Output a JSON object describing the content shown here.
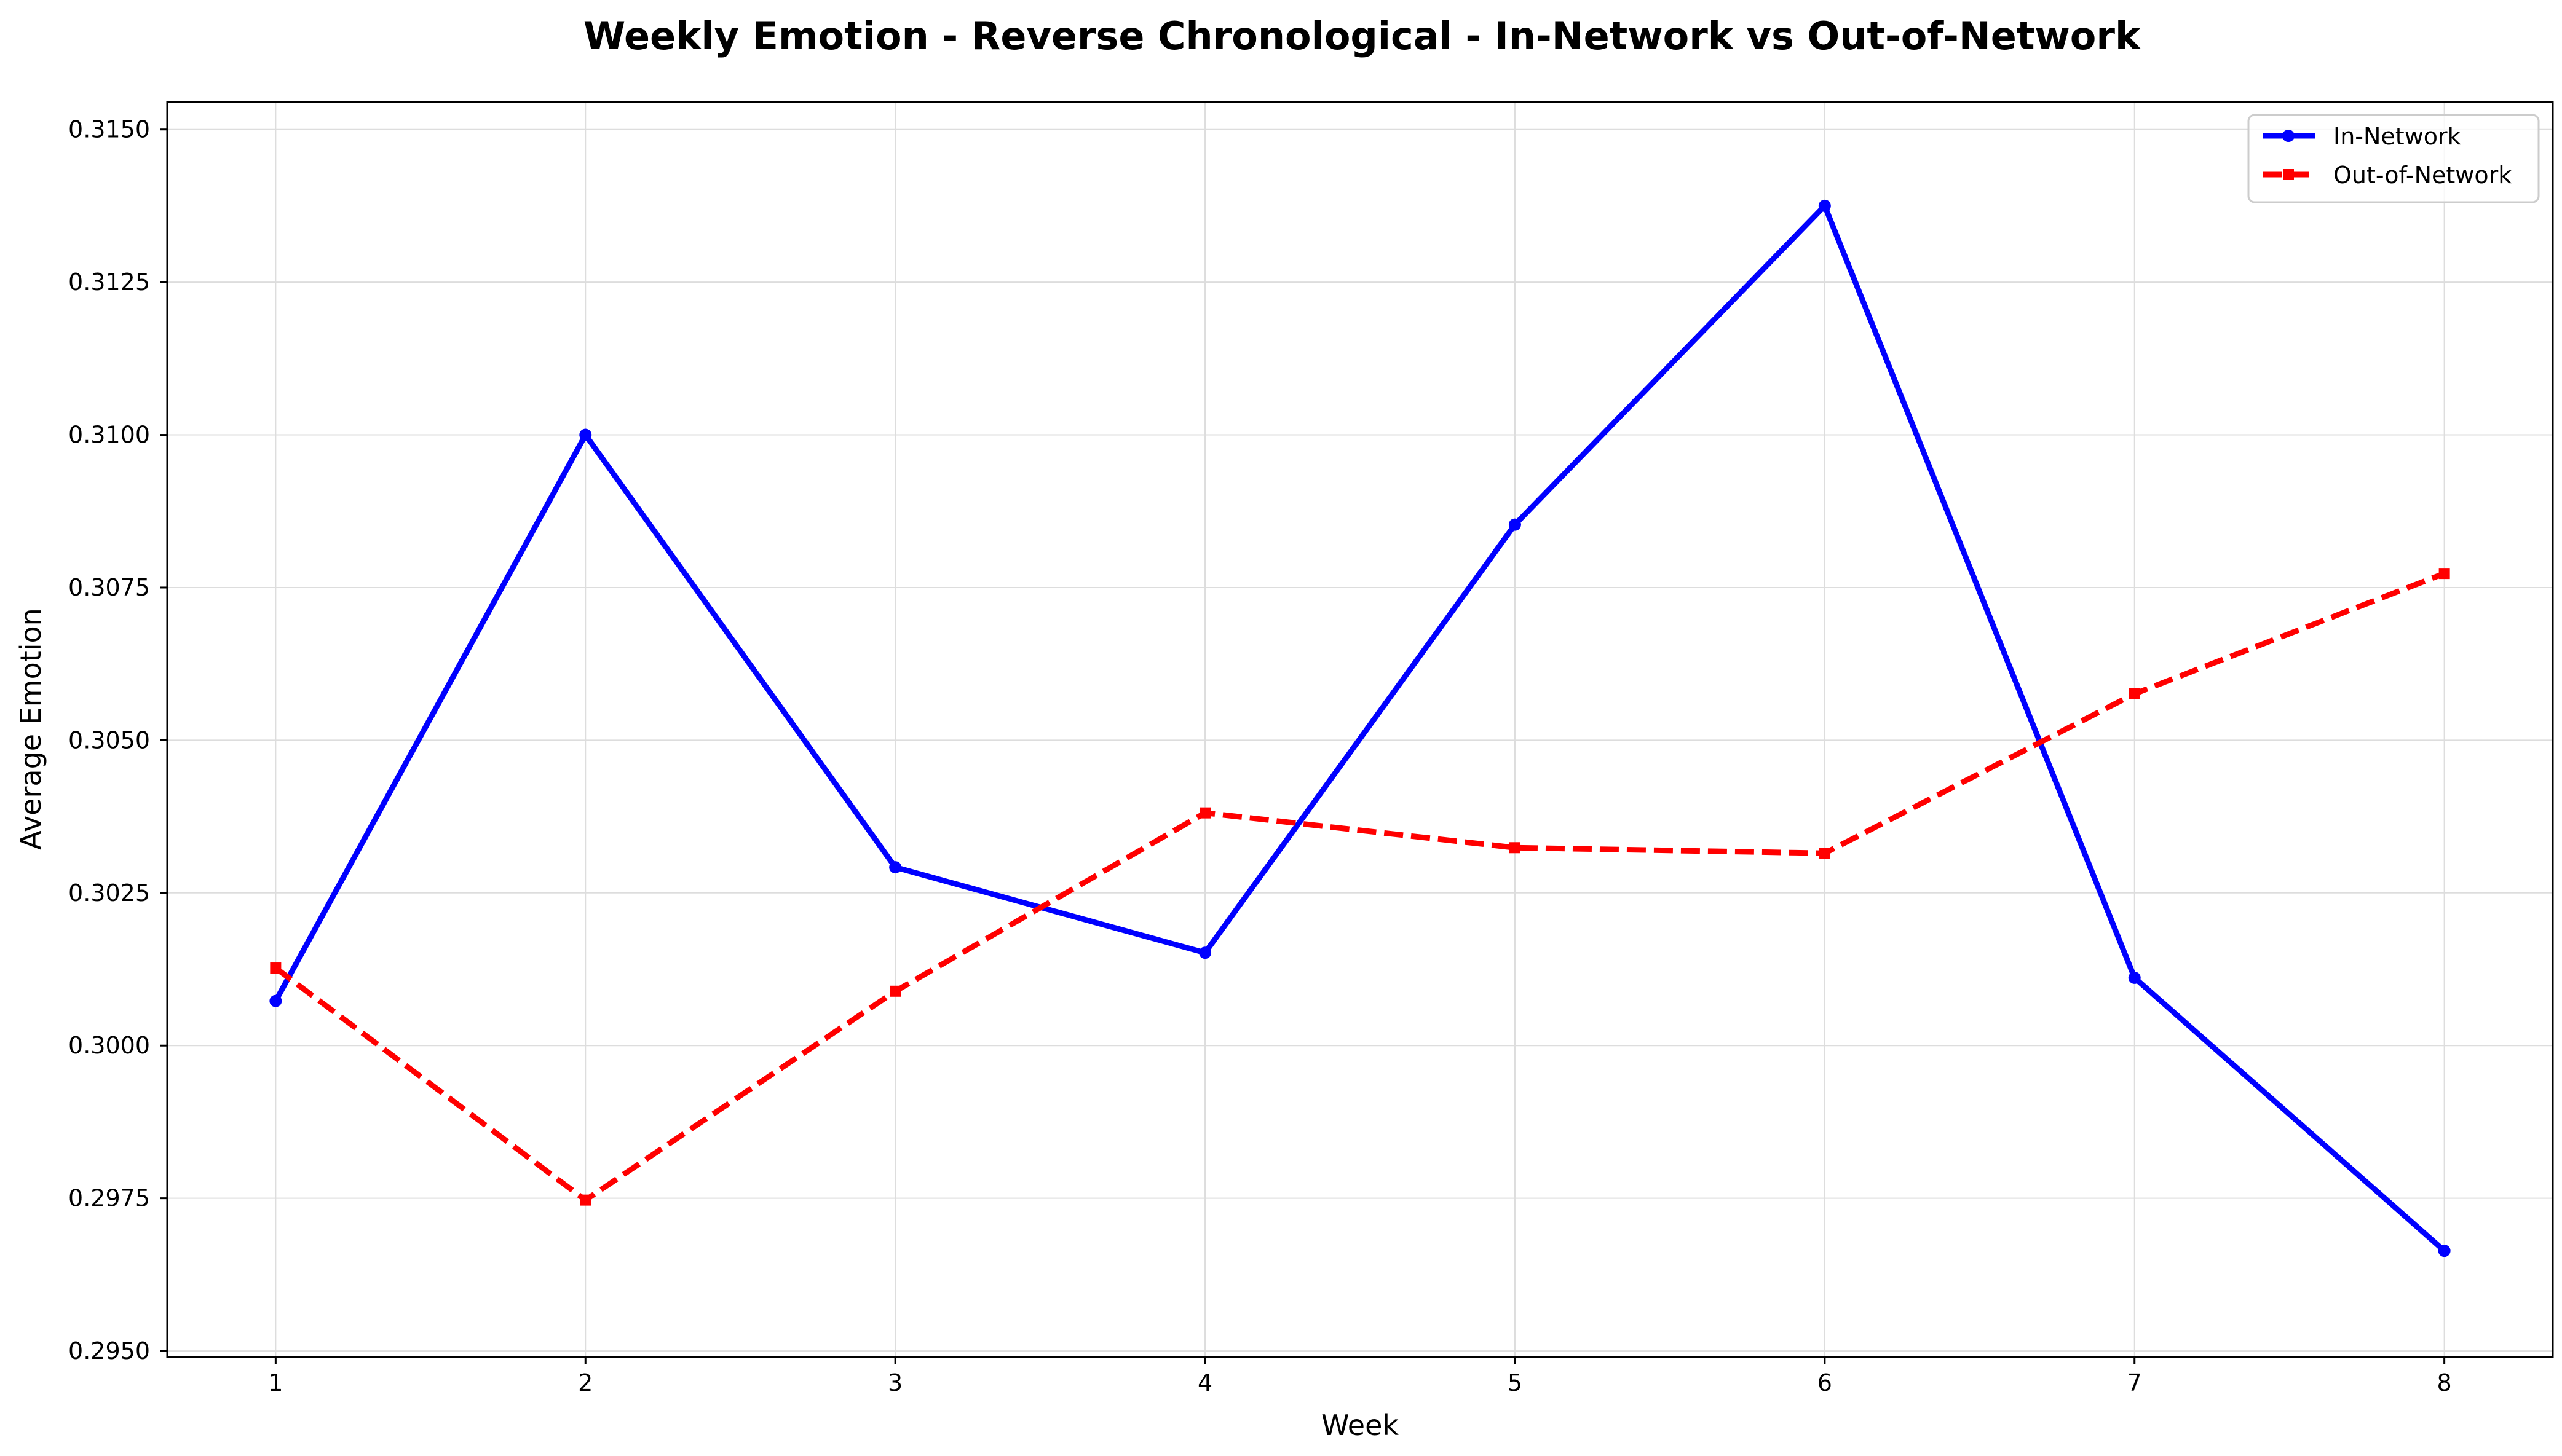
{
  "chart_data": {
    "type": "line",
    "title": "Weekly Emotion - Reverse Chronological - In-Network vs Out-of-Network",
    "xlabel": "Week",
    "ylabel": "Average Emotion",
    "x": [
      1,
      2,
      3,
      4,
      5,
      6,
      7,
      8
    ],
    "xlim": [
      0.65,
      8.35
    ],
    "ylim": [
      0.2949,
      0.31545
    ],
    "yticks": [
      0.295,
      0.2975,
      0.3,
      0.3025,
      0.305,
      0.3075,
      0.31,
      0.3125,
      0.315
    ],
    "ytick_labels": [
      "0.2950",
      "0.2975",
      "0.3000",
      "0.3025",
      "0.3050",
      "0.3075",
      "0.3100",
      "0.3125",
      "0.3150"
    ],
    "xtick_labels": [
      "1",
      "2",
      "3",
      "4",
      "5",
      "6",
      "7",
      "8"
    ],
    "grid": true,
    "legend_position": "top-right",
    "series": [
      {
        "name": "In-Network",
        "values": [
          0.30073,
          0.31,
          0.30292,
          0.30152,
          0.30853,
          0.31375,
          0.30111,
          0.29664
        ],
        "color": "#0000ff",
        "line_style": "solid",
        "marker": "circle"
      },
      {
        "name": "Out-of-Network",
        "values": [
          0.30127,
          0.29747,
          0.30089,
          0.30381,
          0.30324,
          0.30315,
          0.30576,
          0.30773
        ],
        "color": "#ff0000",
        "line_style": "dashed",
        "marker": "square"
      }
    ]
  }
}
